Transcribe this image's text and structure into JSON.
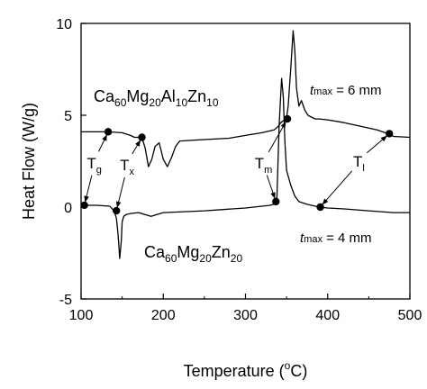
{
  "chart_data": {
    "type": "line",
    "xlabel": "Temperature (oC)",
    "xlabel_main": "Temperature (",
    "xlabel_sup": "o",
    "xlabel_end": "C)",
    "ylabel": "Heat Flow (W/g)",
    "xlim": [
      100,
      500
    ],
    "ylim": [
      -5,
      10
    ],
    "xticks": [
      100,
      200,
      300,
      400,
      500
    ],
    "yticks": [
      -5,
      0,
      5,
      10
    ],
    "grid": false,
    "series": [
      {
        "name": "Ca60Mg20Al10Zn10",
        "name_parts": [
          "Ca",
          "60",
          "Mg",
          "20",
          "Al",
          "10",
          "Zn",
          "10"
        ],
        "tmax": "6 mm",
        "x": [
          100,
          105,
          120,
          133,
          150,
          160,
          165,
          170,
          174,
          178,
          182,
          186,
          190,
          195,
          200,
          205,
          210,
          215,
          220,
          240,
          260,
          280,
          300,
          320,
          335,
          340,
          343,
          346,
          350,
          352,
          355,
          358,
          360,
          362,
          365,
          368,
          372,
          376,
          380,
          385,
          390,
          400,
          420,
          440,
          460,
          470,
          475,
          480,
          500
        ],
        "y": [
          4.1,
          4.1,
          4.1,
          4.1,
          4.05,
          3.9,
          3.8,
          3.8,
          3.8,
          3.2,
          2.2,
          2.6,
          3.3,
          3.5,
          2.6,
          2.2,
          2.7,
          3.3,
          3.6,
          3.65,
          3.7,
          3.75,
          3.9,
          4.05,
          4.2,
          4.4,
          4.6,
          4.7,
          4.85,
          5.5,
          7.5,
          9.6,
          8.5,
          6.5,
          5.5,
          5.8,
          5.3,
          5.0,
          4.9,
          4.8,
          4.8,
          4.75,
          4.6,
          4.4,
          4.2,
          4.05,
          3.95,
          3.85,
          3.8
        ],
        "markers": [
          {
            "x": 133,
            "y": 4.1
          },
          {
            "x": 174,
            "y": 3.8
          },
          {
            "x": 351,
            "y": 4.8
          },
          {
            "x": 475,
            "y": 4.0
          }
        ]
      },
      {
        "name": "Ca60Mg20Zn20",
        "name_parts": [
          "Ca",
          "60",
          "Mg",
          "20",
          "Zn",
          "20"
        ],
        "tmax": "4 mm",
        "x": [
          100,
          104,
          120,
          135,
          140,
          143,
          145,
          147,
          149,
          150,
          152,
          155,
          160,
          170,
          185,
          200,
          250,
          300,
          330,
          338,
          341,
          344,
          346,
          348,
          350,
          355,
          360,
          365,
          375,
          390,
          400,
          420,
          450,
          480,
          500
        ],
        "y": [
          0.1,
          0.1,
          0.1,
          0.05,
          -0.2,
          -0.6,
          -1.5,
          -2.8,
          -1.8,
          -0.8,
          -0.5,
          -0.4,
          -0.35,
          -0.3,
          -0.5,
          -0.3,
          -0.2,
          -0.05,
          0.1,
          0.2,
          4.5,
          7.0,
          6.0,
          3.5,
          2.0,
          1.2,
          0.6,
          0.3,
          0.15,
          0.0,
          -0.05,
          -0.1,
          -0.2,
          -0.3,
          -0.3
        ],
        "markers": [
          {
            "x": 104,
            "y": 0.1
          },
          {
            "x": 143,
            "y": -0.2
          },
          {
            "x": 337,
            "y": 0.3
          },
          {
            "x": 391,
            "y": 0.0
          }
        ]
      }
    ],
    "annotations": [
      {
        "id": "Tg",
        "main": "T",
        "sub": "g",
        "tx": 116,
        "ty": 2.1,
        "arrows": [
          {
            "x": 104,
            "y": 0.1
          },
          {
            "x": 133,
            "y": 4.1
          }
        ]
      },
      {
        "id": "Tx",
        "main": "T",
        "sub": "x",
        "tx": 156,
        "ty": 2.0,
        "arrows": [
          {
            "x": 143,
            "y": -0.2
          },
          {
            "x": 174,
            "y": 3.8
          }
        ]
      },
      {
        "id": "Tm",
        "main": "T",
        "sub": "m",
        "tx": 322,
        "ty": 2.1,
        "arrows": [
          {
            "x": 337,
            "y": 0.3
          },
          {
            "x": 351,
            "y": 4.8
          }
        ]
      },
      {
        "id": "Tl",
        "main": "T",
        "sub": "l",
        "tx": 438,
        "ty": 2.2,
        "arrows": [
          {
            "x": 391,
            "y": 0.0
          },
          {
            "x": 475,
            "y": 4.0
          }
        ]
      }
    ],
    "labels_text": {
      "tmax_prefix": "t",
      "tmax_sub": "max",
      "tmax_eq": " = "
    }
  }
}
